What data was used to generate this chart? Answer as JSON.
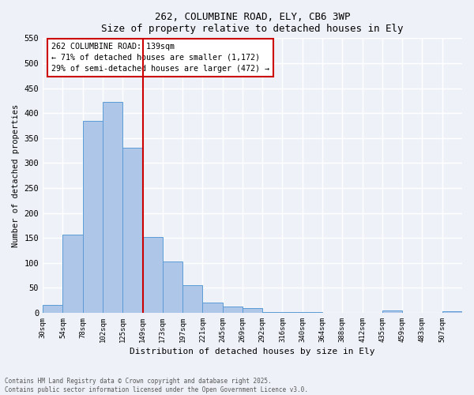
{
  "title1": "262, COLUMBINE ROAD, ELY, CB6 3WP",
  "title2": "Size of property relative to detached houses in Ely",
  "xlabel": "Distribution of detached houses by size in Ely",
  "ylabel": "Number of detached properties",
  "categories": [
    "30sqm",
    "54sqm",
    "78sqm",
    "102sqm",
    "125sqm",
    "149sqm",
    "173sqm",
    "197sqm",
    "221sqm",
    "245sqm",
    "269sqm",
    "292sqm",
    "316sqm",
    "340sqm",
    "364sqm",
    "388sqm",
    "412sqm",
    "435sqm",
    "459sqm",
    "483sqm",
    "507sqm"
  ],
  "values": [
    15,
    157,
    385,
    422,
    330,
    152,
    102,
    55,
    20,
    12,
    10,
    2,
    1,
    1,
    0,
    0,
    0,
    5,
    0,
    0,
    3
  ],
  "bar_color": "#aec6e8",
  "bar_edge_color": "#5b9bd5",
  "vline_label_idx": 5,
  "vline_color": "#cc0000",
  "annotation_title": "262 COLUMBINE ROAD: 139sqm",
  "annotation_line1": "← 71% of detached houses are smaller (1,172)",
  "annotation_line2": "29% of semi-detached houses are larger (472) →",
  "annotation_box_color": "#cc0000",
  "ylim": [
    0,
    550
  ],
  "yticks": [
    0,
    50,
    100,
    150,
    200,
    250,
    300,
    350,
    400,
    450,
    500,
    550
  ],
  "footer1": "Contains HM Land Registry data © Crown copyright and database right 2025.",
  "footer2": "Contains public sector information licensed under the Open Government Licence v3.0.",
  "bg_color": "#eef2f8",
  "grid_color": "#ffffff"
}
